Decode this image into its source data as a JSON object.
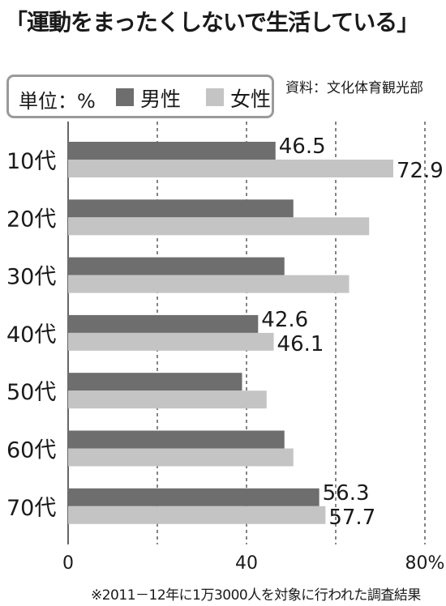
{
  "title": "「運動をまったくしないで生活している」",
  "source": "資料：文化体育観光部",
  "footnote": "※2011－12年に1万3000人を対象に行われた調査結果",
  "legend": {
    "unit": "単位：%",
    "male": "男性",
    "female": "女性"
  },
  "colors": {
    "male": "#6e6e6e",
    "female": "#c4c4c4",
    "grid": "#333333"
  },
  "chart_data": {
    "type": "bar",
    "orientation": "horizontal",
    "title": "「運動をまったくしないで生活している」",
    "unit": "%",
    "categories": [
      "10代",
      "20代",
      "30代",
      "40代",
      "50代",
      "60代",
      "70代"
    ],
    "series": [
      {
        "name": "男性",
        "values": [
          46.5,
          50.5,
          48.5,
          42.6,
          39.0,
          48.5,
          56.3
        ]
      },
      {
        "name": "女性",
        "values": [
          72.9,
          67.5,
          63.0,
          46.1,
          44.5,
          50.5,
          57.7
        ]
      }
    ],
    "data_labels": [
      {
        "category": "10代",
        "male": "46.5",
        "female": "72.9"
      },
      {
        "category": "40代",
        "male": "42.6",
        "female": "46.1"
      },
      {
        "category": "70代",
        "male": "56.3",
        "female": "57.7"
      }
    ],
    "xticks": [
      "0",
      "40",
      "80%"
    ],
    "tick_values": [
      0,
      40,
      80
    ],
    "gridlines": [
      0,
      20,
      40,
      60,
      80
    ],
    "xlim": [
      0,
      80
    ],
    "grid": true,
    "legend_position": "top-left"
  }
}
